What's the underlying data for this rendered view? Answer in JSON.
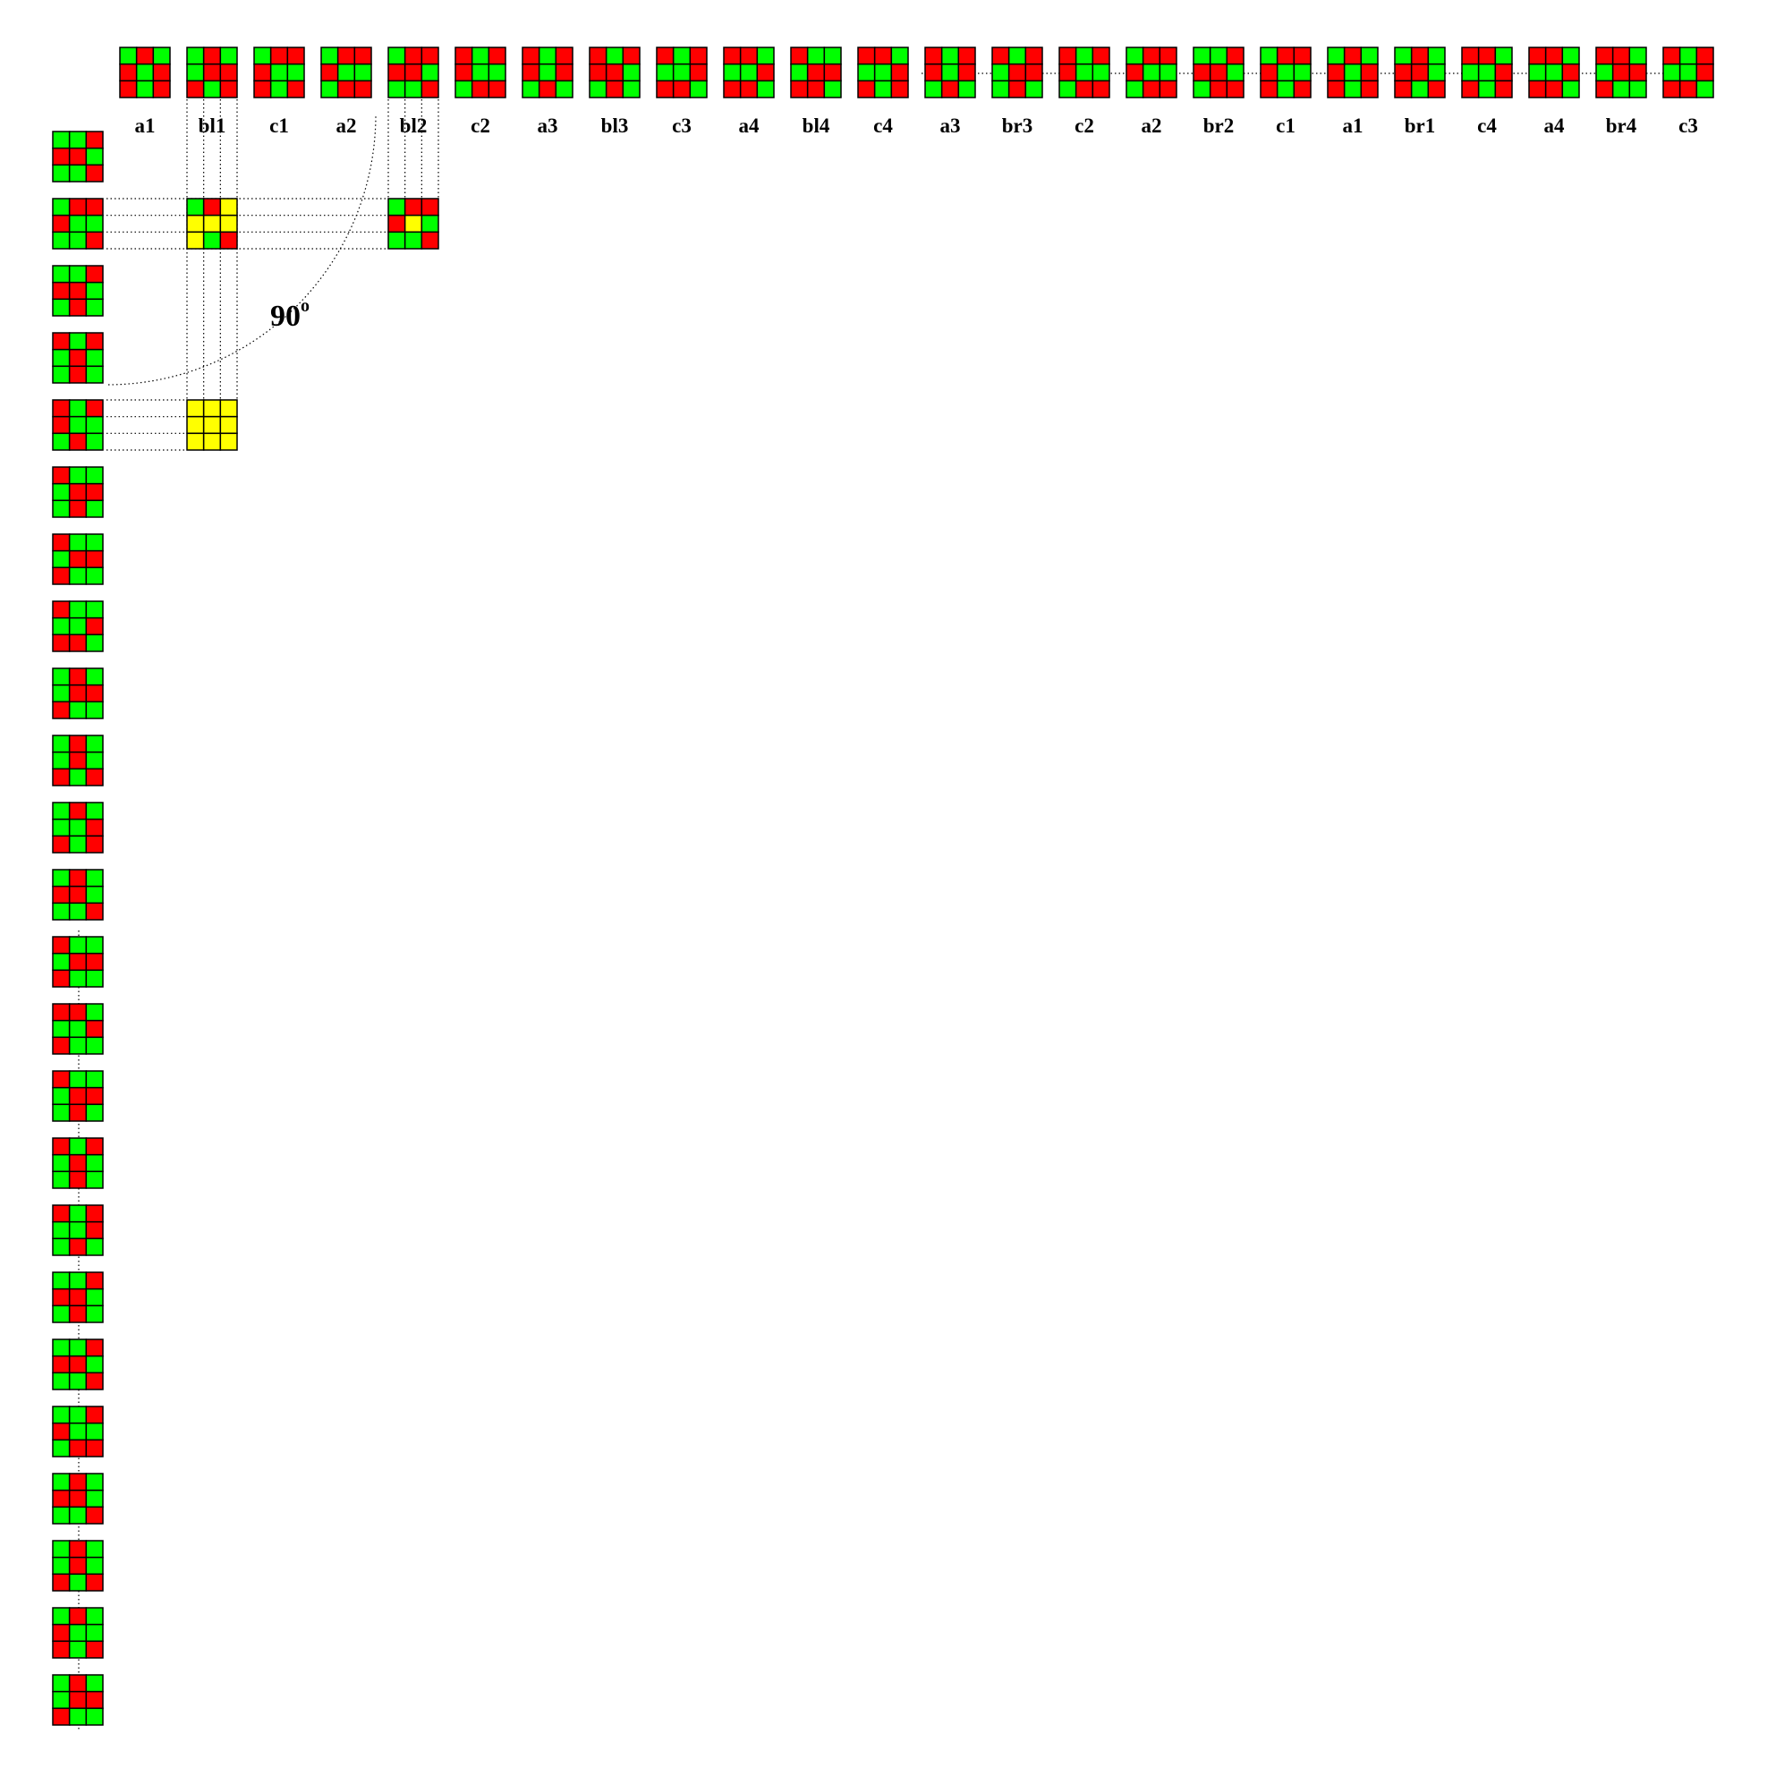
{
  "colors": {
    "R": "#ff0000",
    "G": "#00ff00",
    "Y": "#ffff00",
    "grid": "#000000"
  },
  "top_row": [
    {
      "label": "a1",
      "pattern": "GRG/RGR/RGR"
    },
    {
      "label": "bl1",
      "pattern": "GRG/GRR/RGR"
    },
    {
      "label": "c1",
      "pattern": "GRR/RGG/RGR"
    },
    {
      "label": "a2",
      "pattern": "GRR/RGG/GRR"
    },
    {
      "label": "bl2",
      "pattern": "GRR/RRG/GGR"
    },
    {
      "label": "c2",
      "pattern": "RGR/RGG/GRR"
    },
    {
      "label": "a3",
      "pattern": "RGR/RGR/GRG"
    },
    {
      "label": "bl3",
      "pattern": "RGR/RRG/GRG"
    },
    {
      "label": "c3",
      "pattern": "RGR/GGR/RRG"
    },
    {
      "label": "a4",
      "pattern": "RRG/GGR/RRG"
    },
    {
      "label": "bl4",
      "pattern": "RGG/GRR/RRG"
    },
    {
      "label": "c4",
      "pattern": "RRG/GGR/RGR"
    },
    {
      "label": "a3",
      "pattern": "RGR/RGR/GRG"
    },
    {
      "label": "br3",
      "pattern": "RGR/GRR/GRG"
    },
    {
      "label": "c2",
      "pattern": "RGR/RGG/GRR"
    },
    {
      "label": "a2",
      "pattern": "GRR/RGG/GRR"
    },
    {
      "label": "br2",
      "pattern": "GGR/RRG/GRR"
    },
    {
      "label": "c1",
      "pattern": "GRR/RGG/RGR"
    },
    {
      "label": "a1",
      "pattern": "GRG/RGR/RGR"
    },
    {
      "label": "br1",
      "pattern": "GRG/RRG/RGR"
    },
    {
      "label": "c4",
      "pattern": "RRG/GGR/RGR"
    },
    {
      "label": "a4",
      "pattern": "RRG/GGR/RRG"
    },
    {
      "label": "br4",
      "pattern": "RRG/GRR/RGG"
    },
    {
      "label": "c3",
      "pattern": "RGR/GGR/RRG"
    }
  ],
  "left_column": [
    "GGR/RRG/GGR",
    "GRR/RGG/GGR",
    "GGR/RRG/GRG",
    "RGR/GRG/GRG",
    "RGR/RGG/GRG",
    "RGG/GRR/GRG",
    "RGG/GRR/RGG",
    "RGG/GGR/RRG",
    "GRG/GRR/RGG",
    "GRG/GRG/RGR",
    "GRG/GGR/RGR",
    "GRG/RRG/GGR",
    "RGG/GRR/RGG",
    "RRG/GGR/RGG",
    "RGG/GRR/GRG",
    "RGR/GRG/GRG",
    "RGR/GGR/GRG",
    "GGR/RRG/GRG",
    "GGR/RRG/GGR",
    "GGR/RGG/GRR",
    "GRG/RRG/GGR",
    "GRG/GRG/RGR",
    "GRG/RGG/RGR",
    "GRG/GRR/RGG"
  ],
  "intersections": [
    {
      "row": 2,
      "column": 2,
      "pattern": "GRY/YYY/YGR"
    },
    {
      "row": 2,
      "column": 5,
      "pattern": "GRR/RYG/GGR"
    },
    {
      "row": 5,
      "column": 2,
      "pattern": "YYY/YYY/YYY"
    }
  ],
  "rotation_label": {
    "value": "90",
    "unit": "o"
  }
}
